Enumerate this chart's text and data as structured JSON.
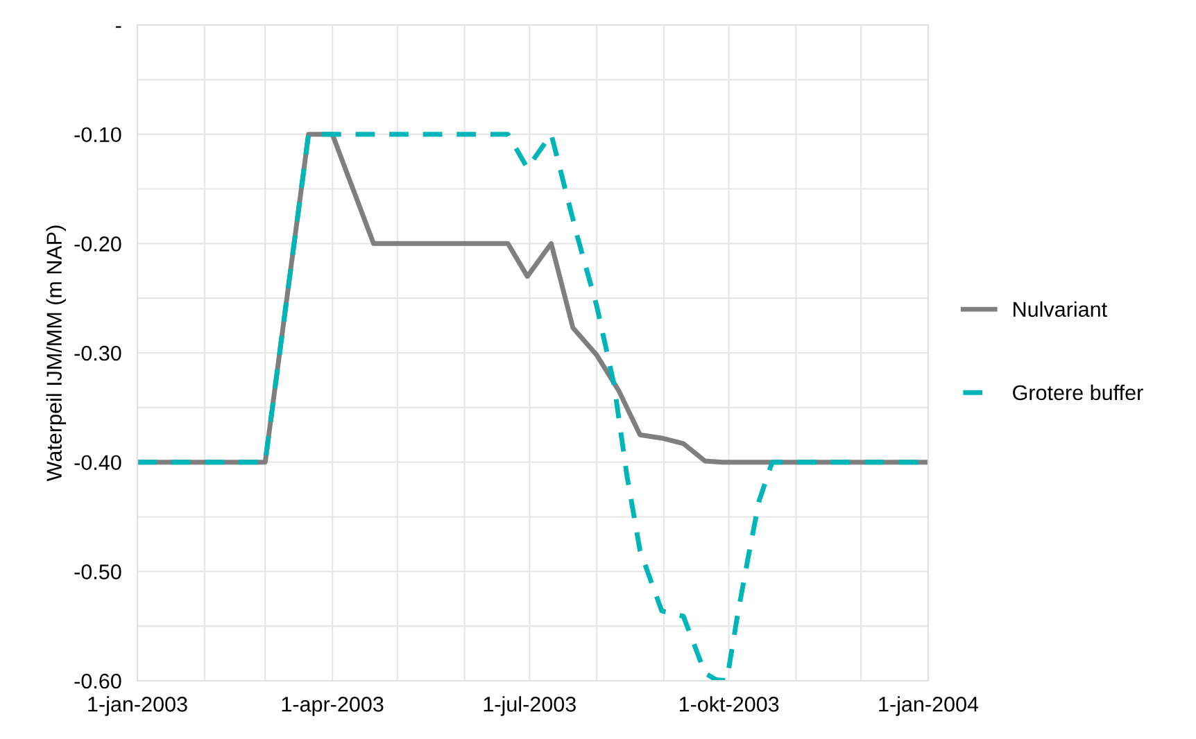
{
  "chart_data": {
    "type": "line",
    "ylabel": "Waterpeil IJM/MM (m NAP)",
    "xlim": [
      "2003-01-01",
      "2004-01-01"
    ],
    "xticks": [
      {
        "value": "2003-01-01",
        "label": "1-jan-2003"
      },
      {
        "value": "2003-02-01",
        "label": null
      },
      {
        "value": "2003-03-01",
        "label": null
      },
      {
        "value": "2003-04-01",
        "label": "1-apr-2003"
      },
      {
        "value": "2003-05-01",
        "label": null
      },
      {
        "value": "2003-06-01",
        "label": null
      },
      {
        "value": "2003-07-01",
        "label": "1-jul-2003"
      },
      {
        "value": "2003-08-01",
        "label": null
      },
      {
        "value": "2003-09-01",
        "label": null
      },
      {
        "value": "2003-10-01",
        "label": "1-okt-2003"
      },
      {
        "value": "2003-11-01",
        "label": null
      },
      {
        "value": "2003-12-01",
        "label": null
      },
      {
        "value": "2004-01-01",
        "label": "1-jan-2004"
      }
    ],
    "ylim": [
      -0.6,
      0
    ],
    "yticks": [
      {
        "value": -0.6,
        "label": "-0.60"
      },
      {
        "value": -0.55,
        "label": null
      },
      {
        "value": -0.5,
        "label": "-0.50"
      },
      {
        "value": -0.45,
        "label": null
      },
      {
        "value": -0.4,
        "label": "-0.40"
      },
      {
        "value": -0.35,
        "label": null
      },
      {
        "value": -0.3,
        "label": "-0.30"
      },
      {
        "value": -0.25,
        "label": null
      },
      {
        "value": -0.2,
        "label": "-0.20"
      },
      {
        "value": -0.15,
        "label": null
      },
      {
        "value": -0.1,
        "label": "-0.10"
      },
      {
        "value": -0.05,
        "label": null
      },
      {
        "value": 0,
        "label": "-"
      }
    ],
    "grid": true,
    "legend": "right",
    "series": [
      {
        "name": "Nulvariant",
        "color": "#7f7f7f",
        "line_style": "solid",
        "x": [
          "2003-01-01",
          "2003-03-01",
          "2003-03-21",
          "2003-04-01",
          "2003-04-20",
          "2003-06-21",
          "2003-06-30",
          "2003-07-11",
          "2003-07-21",
          "2003-08-01",
          "2003-08-11",
          "2003-08-21",
          "2003-08-31",
          "2003-09-10",
          "2003-09-20",
          "2003-09-28",
          "2004-01-01"
        ],
        "values": [
          -0.4,
          -0.4,
          -0.1,
          -0.1,
          -0.2,
          -0.2,
          -0.23,
          -0.2,
          -0.277,
          -0.302,
          -0.334,
          -0.375,
          -0.378,
          -0.383,
          -0.399,
          -0.4,
          -0.4
        ]
      },
      {
        "name": "Grotere buffer",
        "color": "#00b5b8",
        "line_style": "dashed",
        "x": [
          "2003-01-01",
          "2003-03-01",
          "2003-03-21",
          "2003-06-21",
          "2003-06-30",
          "2003-07-11",
          "2003-07-23",
          "2003-08-01",
          "2003-08-09",
          "2003-08-15",
          "2003-08-21",
          "2003-08-31",
          "2003-09-10",
          "2003-09-20",
          "2003-09-25",
          "2003-09-30",
          "2003-10-05",
          "2003-10-10",
          "2003-10-15",
          "2003-10-21",
          "2004-01-01"
        ],
        "values": [
          -0.4,
          -0.4,
          -0.1,
          -0.1,
          -0.131,
          -0.1,
          -0.193,
          -0.257,
          -0.329,
          -0.413,
          -0.481,
          -0.536,
          -0.541,
          -0.593,
          -0.599,
          -0.6,
          -0.54,
          -0.486,
          -0.435,
          -0.4,
          -0.4
        ]
      }
    ]
  }
}
